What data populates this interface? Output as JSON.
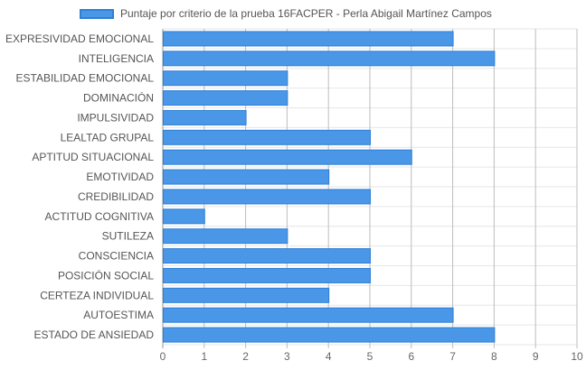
{
  "chart_data": {
    "type": "bar",
    "orientation": "horizontal",
    "categories": [
      "EXPRESIVIDAD EMOCIONAL",
      "INTELIGENCIA",
      "ESTABILIDAD EMOCIONAL",
      "DOMINACIÓN",
      "IMPULSIVIDAD",
      "LEALTAD GRUPAL",
      "APTITUD SITUACIONAL",
      "EMOTIVIDAD",
      "CREDIBILIDAD",
      "ACTITUD COGNITIVA",
      "SUTILEZA",
      "CONSCIENCIA",
      "POSICIÓN SOCIAL",
      "CERTEZA INDIVIDUAL",
      "AUTOESTIMA",
      "ESTADO DE ANSIEDAD"
    ],
    "series": [
      {
        "name": "Puntaje por criterio de la prueba 16FACPER - Perla Abigail Martínez Campos",
        "values": [
          7,
          8,
          3,
          3,
          2,
          5,
          6,
          4,
          5,
          1,
          3,
          5,
          5,
          4,
          7,
          8
        ],
        "color": "#4a97e8",
        "border_color": "#2f7fd6"
      }
    ],
    "xlim": [
      0,
      10
    ],
    "x_ticks": [
      "0",
      "1",
      "2",
      "3",
      "4",
      "5",
      "6",
      "7",
      "8",
      "9",
      "10"
    ],
    "grid": true,
    "legend_position": "top"
  }
}
